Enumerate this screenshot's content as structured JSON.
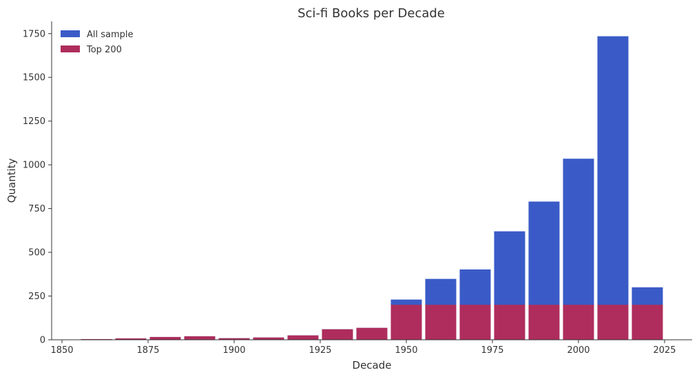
{
  "chart_data": {
    "type": "bar",
    "title": "Sci-fi Books per Decade",
    "xlabel": "Decade",
    "ylabel": "Quantity",
    "xlim": [
      1847,
      2033
    ],
    "ylim": [
      0,
      1820
    ],
    "xticks": [
      1850,
      1875,
      1900,
      1925,
      1950,
      1975,
      2000,
      2025
    ],
    "yticks": [
      0,
      250,
      500,
      750,
      1000,
      1250,
      1500,
      1750
    ],
    "bar_width": 9,
    "x": [
      1860,
      1870,
      1880,
      1890,
      1900,
      1910,
      1920,
      1930,
      1940,
      1950,
      1960,
      1970,
      1980,
      1990,
      2000,
      2010,
      2020
    ],
    "grid": false,
    "legend_position": "top-left",
    "series": [
      {
        "name": "All sample",
        "color": "#3a5bc7",
        "values": [
          4,
          8,
          16,
          20,
          9,
          13,
          25,
          60,
          68,
          230,
          348,
          402,
          620,
          790,
          1035,
          1735,
          300
        ]
      },
      {
        "name": "Top 200",
        "color": "#ae2d5c",
        "values": [
          4,
          8,
          16,
          20,
          9,
          13,
          25,
          60,
          68,
          200,
          200,
          200,
          200,
          200,
          200,
          200,
          200
        ]
      }
    ]
  }
}
